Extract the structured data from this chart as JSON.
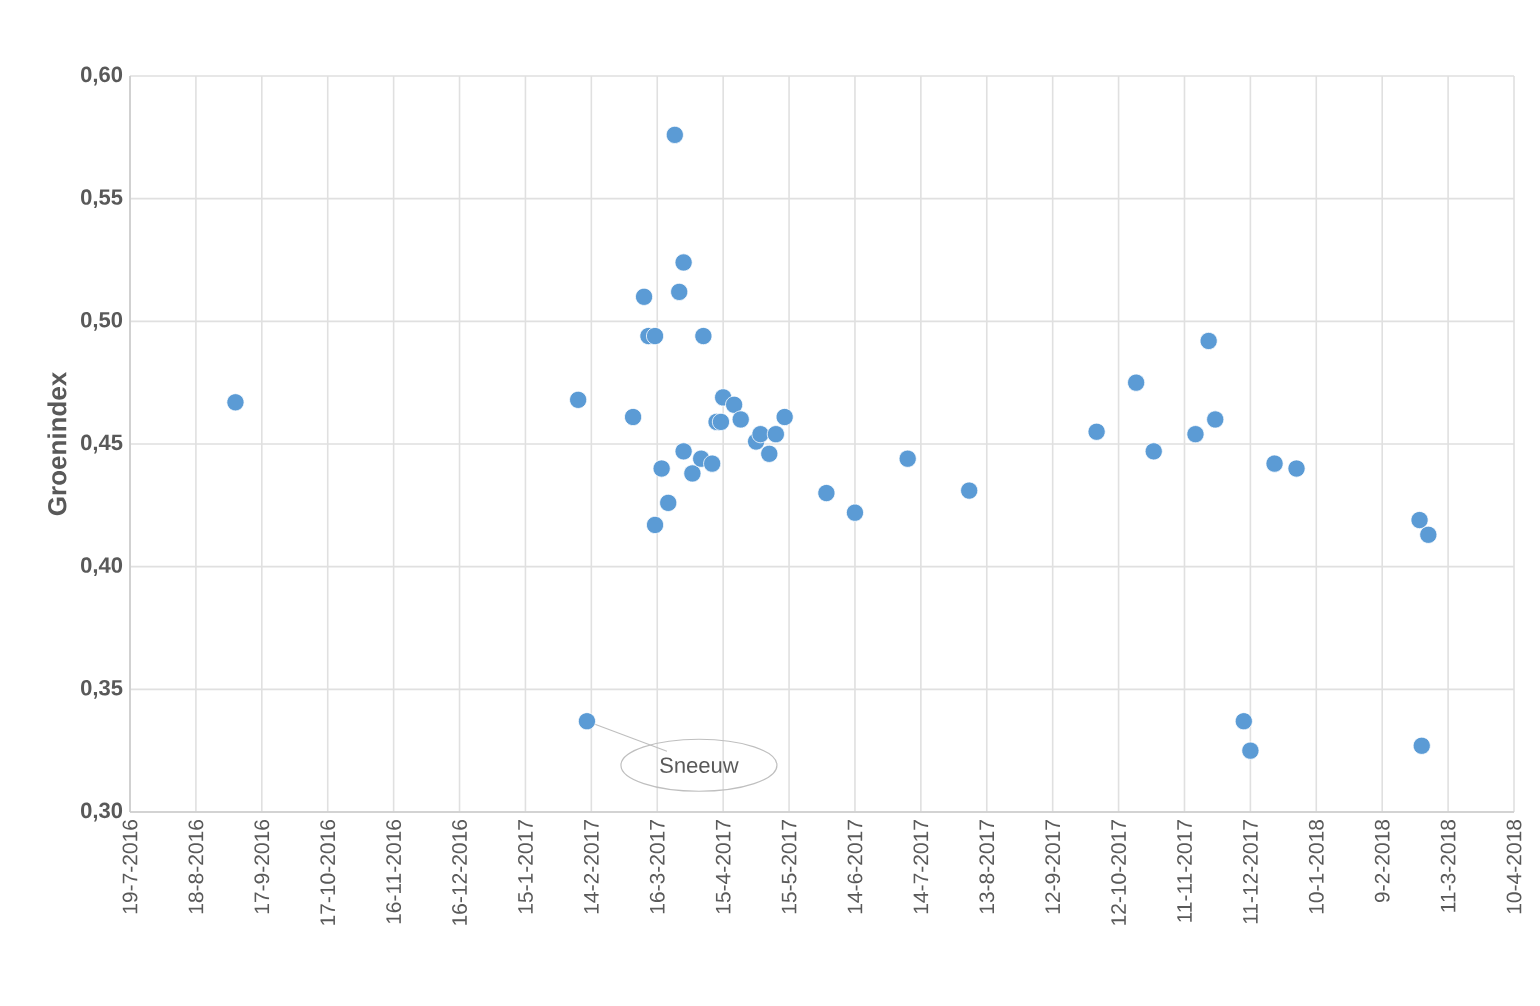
{
  "chart_data": {
    "type": "scatter",
    "ylabel": "Groenindex",
    "color": "#5b9bd5",
    "marker": "circle",
    "grid": true,
    "x": [
      "2016-09-05",
      "2017-02-08",
      "2017-02-12",
      "2017-03-05",
      "2017-03-10",
      "2017-03-12",
      "2017-03-15",
      "2017-03-15",
      "2017-03-18",
      "2017-03-21",
      "2017-03-24",
      "2017-03-26",
      "2017-03-28",
      "2017-03-28",
      "2017-04-01",
      "2017-04-05",
      "2017-04-06",
      "2017-04-10",
      "2017-04-12",
      "2017-04-14",
      "2017-04-15",
      "2017-04-20",
      "2017-04-23",
      "2017-04-30",
      "2017-05-02",
      "2017-05-06",
      "2017-05-09",
      "2017-05-13",
      "2017-06-01",
      "2017-06-14",
      "2017-07-08",
      "2017-08-05",
      "2017-10-02",
      "2017-10-20",
      "2017-10-28",
      "2017-11-16",
      "2017-11-22",
      "2017-11-25",
      "2017-12-08",
      "2017-12-11",
      "2017-12-22",
      "2018-01-01",
      "2018-02-26",
      "2018-02-27",
      "2018-03-02"
    ],
    "values": [
      0.467,
      0.468,
      0.337,
      0.461,
      0.51,
      0.494,
      0.494,
      0.417,
      0.44,
      0.426,
      0.576,
      0.512,
      0.524,
      0.447,
      0.438,
      0.444,
      0.494,
      0.442,
      0.459,
      0.459,
      0.469,
      0.466,
      0.46,
      0.451,
      0.454,
      0.446,
      0.454,
      0.461,
      0.43,
      0.422,
      0.444,
      0.431,
      0.455,
      0.475,
      0.447,
      0.454,
      0.492,
      0.46,
      0.337,
      0.325,
      0.442,
      0.44,
      0.419,
      0.327,
      0.413
    ],
    "xlim": [
      "2016-07-19",
      "2018-04-10"
    ],
    "xticks": [
      {
        "value": "2016-07-19",
        "label": "19-7-2016"
      },
      {
        "value": "2016-08-18",
        "label": "18-8-2016"
      },
      {
        "value": "2016-09-17",
        "label": "17-9-2016"
      },
      {
        "value": "2016-10-17",
        "label": "17-10-2016"
      },
      {
        "value": "2016-11-16",
        "label": "16-11-2016"
      },
      {
        "value": "2016-12-16",
        "label": "16-12-2016"
      },
      {
        "value": "2017-01-15",
        "label": "15-1-2017"
      },
      {
        "value": "2017-02-14",
        "label": "14-2-2017"
      },
      {
        "value": "2017-03-16",
        "label": "16-3-2017"
      },
      {
        "value": "2017-04-15",
        "label": "15-4-2017"
      },
      {
        "value": "2017-05-15",
        "label": "15-5-2017"
      },
      {
        "value": "2017-06-14",
        "label": "14-6-2017"
      },
      {
        "value": "2017-07-14",
        "label": "14-7-2017"
      },
      {
        "value": "2017-08-13",
        "label": "13-8-2017"
      },
      {
        "value": "2017-09-12",
        "label": "12-9-2017"
      },
      {
        "value": "2017-10-12",
        "label": "12-10-2017"
      },
      {
        "value": "2017-11-11",
        "label": "11-11-2017"
      },
      {
        "value": "2017-12-11",
        "label": "11-12-2017"
      },
      {
        "value": "2018-01-10",
        "label": "10-1-2018"
      },
      {
        "value": "2018-02-09",
        "label": "9-2-2018"
      },
      {
        "value": "2018-03-11",
        "label": "11-3-2018"
      },
      {
        "value": "2018-04-10",
        "label": "10-4-2018"
      }
    ],
    "ylim": [
      0.3,
      0.6
    ],
    "yticks": [
      {
        "value": 0.3,
        "label": "0,30"
      },
      {
        "value": 0.35,
        "label": "0,35"
      },
      {
        "value": 0.4,
        "label": "0,40"
      },
      {
        "value": 0.45,
        "label": "0,45"
      },
      {
        "value": 0.5,
        "label": "0,50"
      },
      {
        "value": 0.55,
        "label": "0,55"
      },
      {
        "value": 0.6,
        "label": "0,60"
      }
    ],
    "annotations": [
      {
        "text": "Sneeuw",
        "x": "2017-02-12",
        "y": 0.337
      }
    ]
  }
}
